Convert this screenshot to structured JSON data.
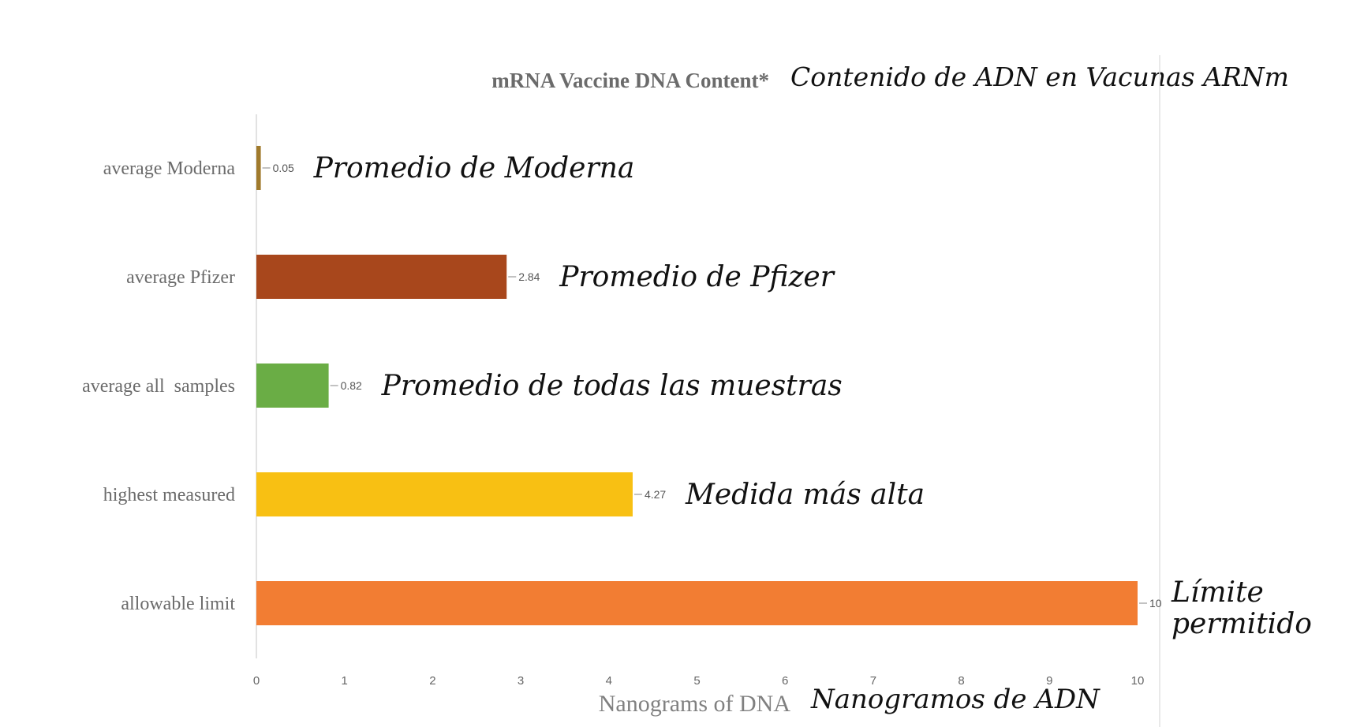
{
  "chart_data": {
    "type": "bar",
    "orientation": "horizontal",
    "title": "mRNA Vaccine DNA Content*",
    "title_translation": "Contenido de ADN en Vacunas ARNm",
    "xlabel": "Nanograms of DNA",
    "xlabel_translation": "Nanogramos de ADN",
    "xlim": [
      0,
      10
    ],
    "xticks": [
      "0",
      "1",
      "2",
      "3",
      "4",
      "5",
      "6",
      "7",
      "8",
      "9",
      "10"
    ],
    "grid": false,
    "categories": [
      {
        "label": "average Moderna",
        "value": 0.05,
        "value_label": "0.05",
        "color": "#a07a2c",
        "translation": "Promedio de Moderna"
      },
      {
        "label": "average Pfizer",
        "value": 2.84,
        "value_label": "2.84",
        "color": "#a8471c",
        "translation": "Promedio de Pfizer"
      },
      {
        "label": "average all  samples",
        "value": 0.82,
        "value_label": "0.82",
        "color": "#6aad45",
        "translation": "Promedio de todas las muestras"
      },
      {
        "label": "highest measured",
        "value": 4.27,
        "value_label": "4.27",
        "color": "#f8c013",
        "translation": "Medida más alta"
      },
      {
        "label": "allowable limit",
        "value": 10,
        "value_label": "10",
        "color": "#f27d33",
        "translation": "Límite permitido"
      }
    ]
  }
}
